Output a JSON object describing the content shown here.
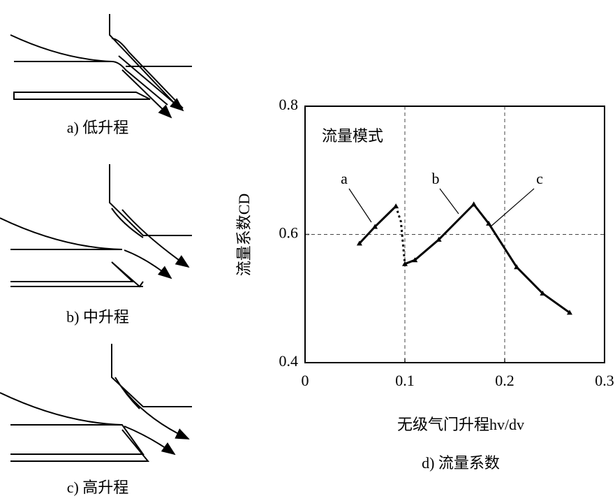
{
  "diagrams": [
    {
      "caption": "a) 低升程"
    },
    {
      "caption": "b) 中升程"
    },
    {
      "caption": "c) 高升程"
    }
  ],
  "chart_data": {
    "type": "line",
    "caption": "d) 流量系数",
    "xlabel": "无级气门升程hv/dv",
    "ylabel": "流量系数CD",
    "annotations": [
      "流量模式",
      "a",
      "b",
      "c"
    ],
    "xlim": [
      0,
      0.3
    ],
    "xticks": [
      0,
      0.1,
      0.2,
      0.3
    ],
    "ylim": [
      0.4,
      0.8
    ],
    "yticks": [
      0.4,
      0.6,
      0.8
    ],
    "grid": true,
    "series": [
      {
        "color": "#000000",
        "dash": false,
        "x": [
          0.0545,
          0.07,
          0.091
        ],
        "values": [
          0.586,
          0.612,
          0.644
        ]
      },
      {
        "color": "#000000",
        "dash": true,
        "x": [
          0.091,
          0.096,
          0.1
        ],
        "values": [
          0.644,
          0.62,
          0.554
        ]
      },
      {
        "color": "#000000",
        "dash": false,
        "x": [
          0.1,
          0.11,
          0.134,
          0.169
        ],
        "values": [
          0.554,
          0.56,
          0.592,
          0.647
        ]
      },
      {
        "color": "#000000",
        "dash": false,
        "x": [
          0.169,
          0.184,
          0.212,
          0.238,
          0.265
        ],
        "values": [
          0.647,
          0.617,
          0.549,
          0.508,
          0.478
        ]
      }
    ]
  }
}
